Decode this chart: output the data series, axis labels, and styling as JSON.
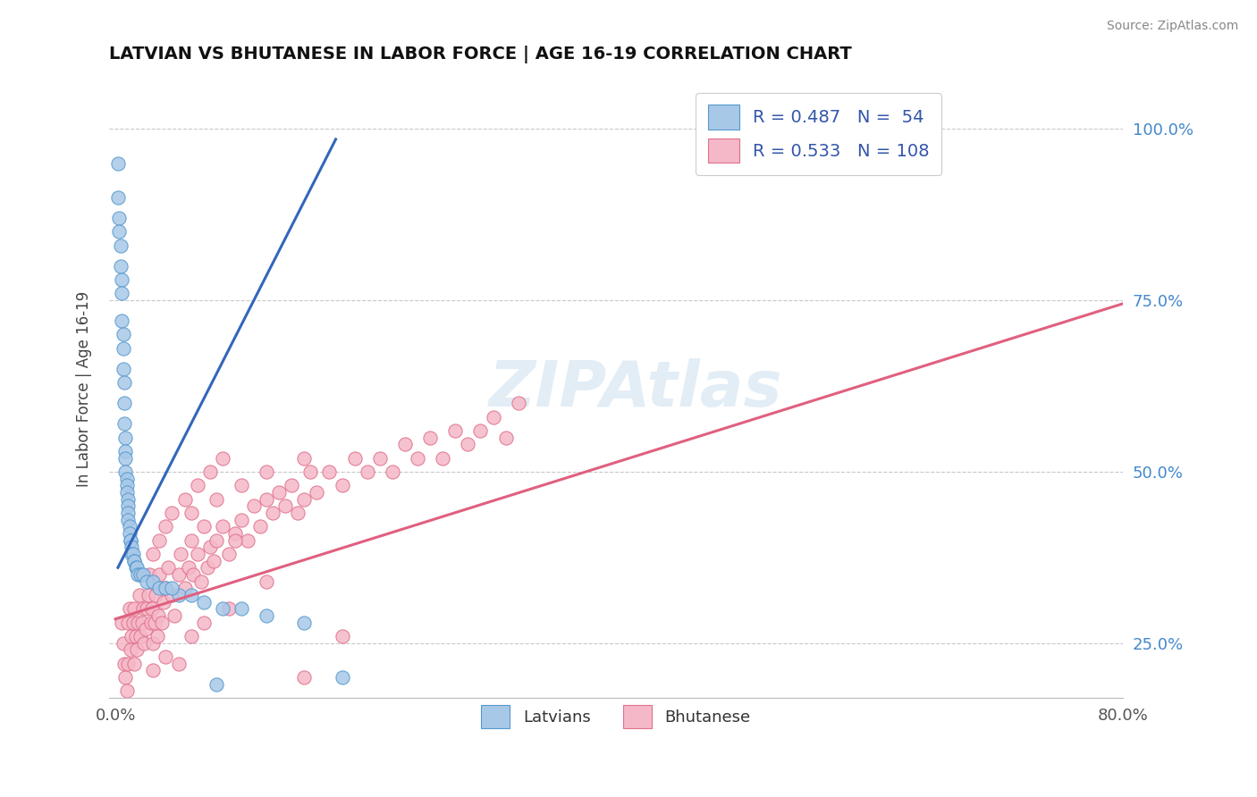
{
  "title": "LATVIAN VS BHUTANESE IN LABOR FORCE | AGE 16-19 CORRELATION CHART",
  "source_text": "Source: ZipAtlas.com",
  "ylabel": "In Labor Force | Age 16-19",
  "xlim": [
    -0.005,
    0.8
  ],
  "ylim": [
    0.17,
    1.07
  ],
  "right_yticks": [
    0.25,
    0.5,
    0.75,
    1.0
  ],
  "right_yticklabels": [
    "25.0%",
    "50.0%",
    "75.0%",
    "100.0%"
  ],
  "xticks": [
    0.0,
    0.8
  ],
  "xticklabels": [
    "0.0%",
    "80.0%"
  ],
  "legend_label1": "R = 0.487   N =  54",
  "legend_label2": "R = 0.533   N = 108",
  "latvian_color": "#a8c8e8",
  "bhutanese_color": "#f5b8c8",
  "latvian_edge_color": "#5599cc",
  "bhutanese_edge_color": "#e0708a",
  "latvian_line_color": "#3366bb",
  "bhutanese_line_color": "#e06080",
  "watermark": "ZIPAtlas",
  "latvians_label": "Latvians",
  "bhutanese_label": "Bhutanese",
  "latvian_x": [
    0.002,
    0.002,
    0.003,
    0.003,
    0.004,
    0.004,
    0.005,
    0.005,
    0.005,
    0.006,
    0.006,
    0.006,
    0.007,
    0.007,
    0.007,
    0.008,
    0.008,
    0.008,
    0.008,
    0.009,
    0.009,
    0.009,
    0.01,
    0.01,
    0.01,
    0.01,
    0.011,
    0.011,
    0.012,
    0.012,
    0.013,
    0.013,
    0.014,
    0.015,
    0.015,
    0.016,
    0.017,
    0.018,
    0.02,
    0.022,
    0.025,
    0.03,
    0.035,
    0.04,
    0.05,
    0.06,
    0.07,
    0.085,
    0.1,
    0.12,
    0.15,
    0.18,
    0.08,
    0.045
  ],
  "latvian_y": [
    0.95,
    0.9,
    0.87,
    0.85,
    0.83,
    0.8,
    0.78,
    0.76,
    0.72,
    0.7,
    0.68,
    0.65,
    0.63,
    0.6,
    0.57,
    0.55,
    0.53,
    0.52,
    0.5,
    0.49,
    0.48,
    0.47,
    0.46,
    0.45,
    0.44,
    0.43,
    0.42,
    0.41,
    0.4,
    0.4,
    0.39,
    0.38,
    0.38,
    0.37,
    0.37,
    0.36,
    0.36,
    0.35,
    0.35,
    0.35,
    0.34,
    0.34,
    0.33,
    0.33,
    0.32,
    0.32,
    0.31,
    0.3,
    0.3,
    0.29,
    0.28,
    0.2,
    0.19,
    0.33
  ],
  "bhutanese_x": [
    0.005,
    0.006,
    0.007,
    0.008,
    0.009,
    0.01,
    0.01,
    0.011,
    0.012,
    0.013,
    0.014,
    0.015,
    0.015,
    0.016,
    0.017,
    0.018,
    0.019,
    0.02,
    0.02,
    0.021,
    0.022,
    0.023,
    0.024,
    0.025,
    0.026,
    0.027,
    0.028,
    0.029,
    0.03,
    0.031,
    0.032,
    0.033,
    0.034,
    0.035,
    0.037,
    0.038,
    0.04,
    0.042,
    0.045,
    0.047,
    0.05,
    0.052,
    0.055,
    0.058,
    0.06,
    0.062,
    0.065,
    0.068,
    0.07,
    0.073,
    0.075,
    0.078,
    0.08,
    0.085,
    0.09,
    0.095,
    0.1,
    0.105,
    0.11,
    0.115,
    0.12,
    0.125,
    0.13,
    0.135,
    0.14,
    0.145,
    0.15,
    0.155,
    0.16,
    0.17,
    0.18,
    0.19,
    0.2,
    0.21,
    0.22,
    0.23,
    0.24,
    0.25,
    0.26,
    0.27,
    0.28,
    0.29,
    0.3,
    0.31,
    0.32,
    0.03,
    0.04,
    0.05,
    0.06,
    0.07,
    0.09,
    0.12,
    0.15,
    0.18,
    0.06,
    0.08,
    0.1,
    0.12,
    0.15,
    0.03,
    0.035,
    0.04,
    0.045,
    0.055,
    0.065,
    0.075,
    0.085,
    0.095
  ],
  "bhutanese_y": [
    0.28,
    0.25,
    0.22,
    0.2,
    0.18,
    0.28,
    0.22,
    0.3,
    0.24,
    0.26,
    0.28,
    0.22,
    0.3,
    0.26,
    0.24,
    0.28,
    0.32,
    0.26,
    0.35,
    0.28,
    0.3,
    0.25,
    0.27,
    0.3,
    0.32,
    0.35,
    0.28,
    0.3,
    0.25,
    0.28,
    0.32,
    0.26,
    0.29,
    0.35,
    0.28,
    0.31,
    0.33,
    0.36,
    0.32,
    0.29,
    0.35,
    0.38,
    0.33,
    0.36,
    0.4,
    0.35,
    0.38,
    0.34,
    0.42,
    0.36,
    0.39,
    0.37,
    0.4,
    0.42,
    0.38,
    0.41,
    0.43,
    0.4,
    0.45,
    0.42,
    0.46,
    0.44,
    0.47,
    0.45,
    0.48,
    0.44,
    0.46,
    0.5,
    0.47,
    0.5,
    0.48,
    0.52,
    0.5,
    0.52,
    0.5,
    0.54,
    0.52,
    0.55,
    0.52,
    0.56,
    0.54,
    0.56,
    0.58,
    0.55,
    0.6,
    0.21,
    0.23,
    0.22,
    0.26,
    0.28,
    0.3,
    0.34,
    0.2,
    0.26,
    0.44,
    0.46,
    0.48,
    0.5,
    0.52,
    0.38,
    0.4,
    0.42,
    0.44,
    0.46,
    0.48,
    0.5,
    0.52,
    0.4
  ],
  "latvian_trend_x": [
    0.002,
    0.175
  ],
  "latvian_trend_y": [
    0.36,
    0.985
  ],
  "bhutanese_trend_x": [
    0.0,
    0.8
  ],
  "bhutanese_trend_y": [
    0.285,
    0.745
  ]
}
